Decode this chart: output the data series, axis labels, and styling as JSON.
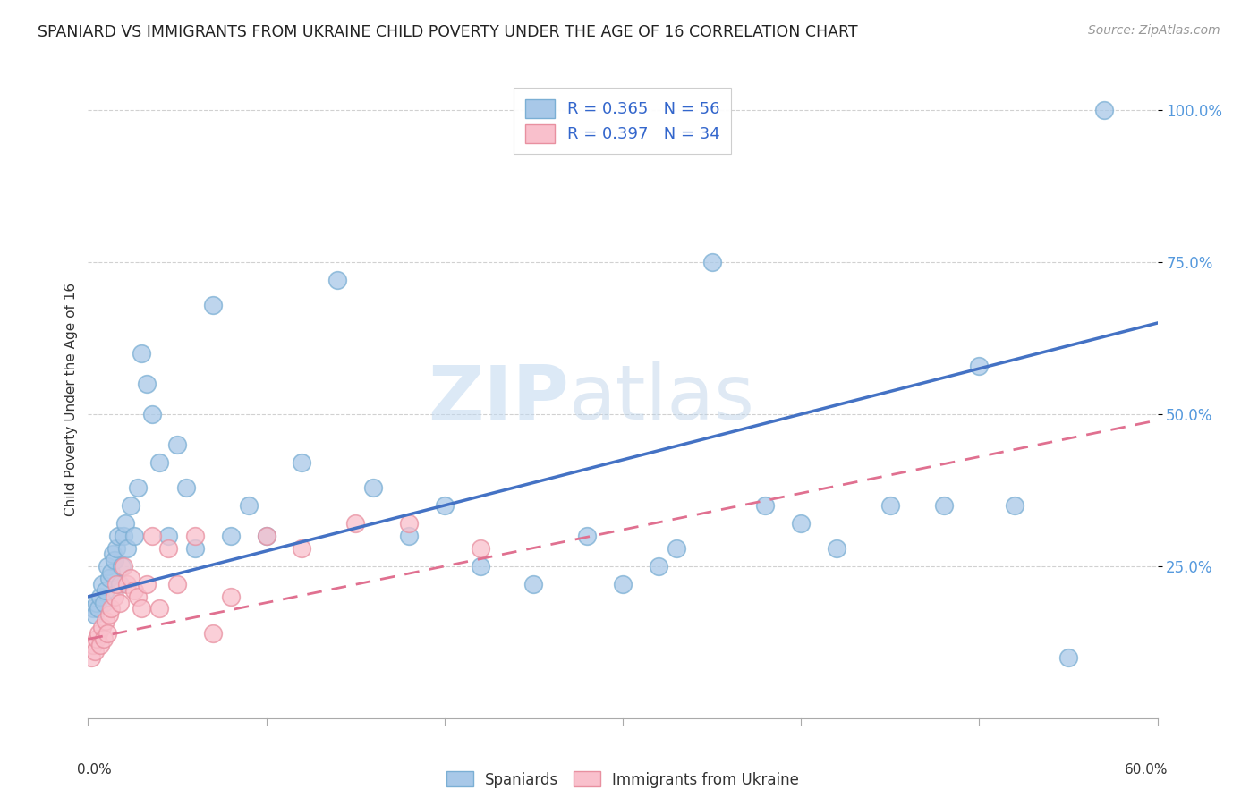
{
  "title": "SPANIARD VS IMMIGRANTS FROM UKRAINE CHILD POVERTY UNDER THE AGE OF 16 CORRELATION CHART",
  "source": "Source: ZipAtlas.com",
  "ylabel": "Child Poverty Under the Age of 16",
  "watermark_text": "ZIPatlas",
  "blue_scatter_face": "#a8c8e8",
  "blue_scatter_edge": "#7bafd4",
  "pink_scatter_face": "#f9c0cc",
  "pink_scatter_edge": "#e890a0",
  "line_blue_color": "#4472c4",
  "line_pink_color": "#e07090",
  "grid_color": "#cccccc",
  "ytick_color": "#5599dd",
  "title_color": "#222222",
  "source_color": "#999999",
  "legend_label_color": "#3366cc",
  "legend_top": [
    "R = 0.365   N = 56",
    "R = 0.397   N = 34"
  ],
  "legend_bottom": [
    "Spaniards",
    "Immigrants from Ukraine"
  ],
  "xlim": [
    0.0,
    0.6
  ],
  "ylim": [
    0.0,
    1.05
  ],
  "yticks": [
    0.25,
    0.5,
    0.75,
    1.0
  ],
  "ytick_labels": [
    "25.0%",
    "50.0%",
    "75.0%",
    "100.0%"
  ],
  "blue_line_intercept": 0.2,
  "blue_line_slope": 0.75,
  "pink_line_intercept": 0.13,
  "pink_line_slope": 0.6,
  "sp_x": [
    0.003,
    0.004,
    0.005,
    0.006,
    0.007,
    0.008,
    0.009,
    0.01,
    0.011,
    0.012,
    0.013,
    0.014,
    0.015,
    0.016,
    0.017,
    0.018,
    0.019,
    0.02,
    0.021,
    0.022,
    0.024,
    0.026,
    0.028,
    0.03,
    0.033,
    0.036,
    0.04,
    0.045,
    0.05,
    0.055,
    0.06,
    0.07,
    0.08,
    0.09,
    0.1,
    0.12,
    0.14,
    0.16,
    0.18,
    0.2,
    0.22,
    0.25,
    0.28,
    0.32,
    0.35,
    0.38,
    0.4,
    0.45,
    0.5,
    0.52,
    0.55,
    0.57,
    0.3,
    0.33,
    0.42,
    0.48
  ],
  "sp_y": [
    0.18,
    0.17,
    0.19,
    0.18,
    0.2,
    0.22,
    0.19,
    0.21,
    0.25,
    0.23,
    0.24,
    0.27,
    0.26,
    0.28,
    0.3,
    0.22,
    0.25,
    0.3,
    0.32,
    0.28,
    0.35,
    0.3,
    0.38,
    0.6,
    0.55,
    0.5,
    0.42,
    0.3,
    0.45,
    0.38,
    0.28,
    0.68,
    0.3,
    0.35,
    0.3,
    0.42,
    0.72,
    0.38,
    0.3,
    0.35,
    0.25,
    0.22,
    0.3,
    0.25,
    0.75,
    0.35,
    0.32,
    0.35,
    0.58,
    0.35,
    0.1,
    1.0,
    0.22,
    0.28,
    0.28,
    0.35
  ],
  "uk_x": [
    0.002,
    0.003,
    0.004,
    0.005,
    0.006,
    0.007,
    0.008,
    0.009,
    0.01,
    0.011,
    0.012,
    0.013,
    0.015,
    0.016,
    0.018,
    0.02,
    0.022,
    0.024,
    0.026,
    0.028,
    0.03,
    0.033,
    0.036,
    0.04,
    0.045,
    0.05,
    0.06,
    0.07,
    0.08,
    0.1,
    0.12,
    0.15,
    0.18,
    0.22
  ],
  "uk_y": [
    0.1,
    0.12,
    0.11,
    0.13,
    0.14,
    0.12,
    0.15,
    0.13,
    0.16,
    0.14,
    0.17,
    0.18,
    0.2,
    0.22,
    0.19,
    0.25,
    0.22,
    0.23,
    0.21,
    0.2,
    0.18,
    0.22,
    0.3,
    0.18,
    0.28,
    0.22,
    0.3,
    0.14,
    0.2,
    0.3,
    0.28,
    0.32,
    0.32,
    0.28
  ]
}
